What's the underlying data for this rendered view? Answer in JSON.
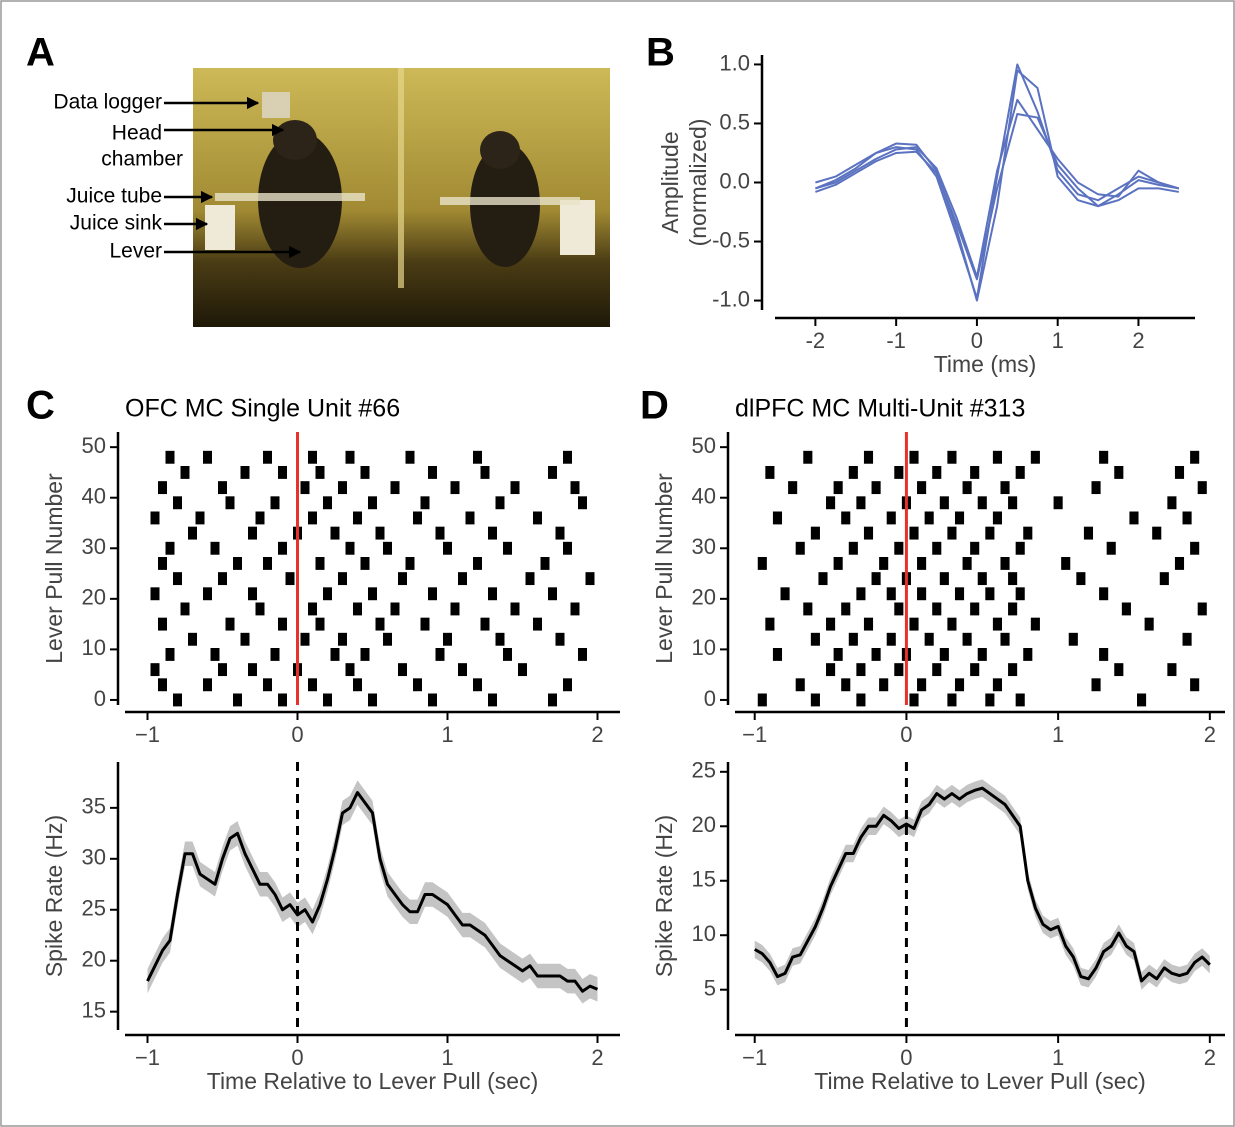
{
  "panel_letters": [
    "A",
    "B",
    "C",
    "D"
  ],
  "photo_labels": [
    "Data logger",
    "Head",
    "chamber",
    "Juice tube",
    "Juice sink",
    "Lever"
  ],
  "chart_data": [
    {
      "type": "line",
      "xlabel": "Time (ms)",
      "ylabel": [
        "Amplitude",
        "(normalized)"
      ],
      "x": [
        -2,
        -1.75,
        -1.5,
        -1.25,
        -1,
        -0.75,
        -0.5,
        -0.25,
        0,
        0.25,
        0.5,
        0.75,
        1,
        1.25,
        1.5,
        1.75,
        2,
        2.25,
        2.5
      ],
      "series": [
        {
          "color": "#5a72c0",
          "values": [
            -0.05,
            0.02,
            0.12,
            0.25,
            0.33,
            0.32,
            0.1,
            -0.4,
            -1.0,
            -0.2,
            0.95,
            0.8,
            0.05,
            -0.15,
            -0.2,
            -0.1,
            0.02,
            -0.02,
            -0.05
          ]
        },
        {
          "color": "#5a72c0",
          "values": [
            0.0,
            0.05,
            0.15,
            0.25,
            0.3,
            0.28,
            0.05,
            -0.45,
            -0.98,
            0.05,
            1.0,
            0.6,
            0.1,
            -0.1,
            -0.15,
            -0.05,
            0.05,
            0.0,
            -0.05
          ]
        },
        {
          "color": "#5a72c0",
          "values": [
            -0.08,
            -0.02,
            0.08,
            0.18,
            0.25,
            0.26,
            0.08,
            -0.35,
            -0.82,
            -0.05,
            0.58,
            0.55,
            0.15,
            -0.05,
            -0.2,
            -0.15,
            -0.05,
            -0.05,
            -0.08
          ]
        },
        {
          "color": "#5a72c0",
          "values": [
            -0.05,
            0.0,
            0.1,
            0.2,
            0.28,
            0.3,
            0.12,
            -0.3,
            -0.8,
            0.1,
            0.7,
            0.45,
            0.2,
            0.0,
            -0.1,
            -0.12,
            0.1,
            0.0,
            -0.05
          ]
        }
      ],
      "xlim": [
        -2.5,
        2.7
      ],
      "ylim": [
        -1.08,
        1.08
      ],
      "xticks": [
        -2,
        -1,
        0,
        1,
        2
      ],
      "yticks": [
        {
          "value": -1,
          "label": "-1.0"
        },
        {
          "value": -0.5,
          "label": "-0.5"
        },
        {
          "value": 0,
          "label": "0.0"
        },
        {
          "value": 0.5,
          "label": "0.5"
        },
        {
          "value": 1,
          "label": "1.0"
        }
      ]
    },
    {
      "type": "raster",
      "title": "OFC MC Single Unit #66",
      "ylabel": "Lever Pull Number",
      "color": "#000000",
      "vline": {
        "x": 0,
        "color": "#e8312a",
        "style": "solid"
      },
      "trials": [
        0,
        3,
        6,
        9,
        12,
        15,
        18,
        21,
        24,
        27,
        30,
        33,
        36,
        39,
        42,
        45,
        48
      ],
      "spike_times": [
        [
          -0.8,
          -0.4,
          -0.1,
          0.2,
          0.5,
          0.9,
          1.3,
          1.7
        ],
        [
          -0.9,
          -0.6,
          -0.2,
          0.1,
          0.4,
          0.8,
          1.2,
          1.8
        ],
        [
          -0.95,
          -0.5,
          -0.3,
          0.0,
          0.35,
          0.7,
          1.1,
          1.5
        ],
        [
          -0.85,
          -0.55,
          -0.15,
          0.25,
          0.45,
          0.95,
          1.4,
          1.9
        ],
        [
          -0.7,
          -0.35,
          0.05,
          0.3,
          0.6,
          1.0,
          1.35,
          1.75
        ],
        [
          -0.9,
          -0.45,
          -0.1,
          0.15,
          0.55,
          0.85,
          1.25,
          1.6
        ],
        [
          -0.75,
          -0.25,
          0.1,
          0.4,
          0.65,
          1.05,
          1.45,
          1.85
        ],
        [
          -0.95,
          -0.6,
          -0.3,
          0.2,
          0.5,
          0.9,
          1.3,
          1.7
        ],
        [
          -0.8,
          -0.5,
          -0.05,
          0.3,
          0.7,
          1.1,
          1.55,
          1.95
        ],
        [
          -0.9,
          -0.4,
          -0.2,
          0.15,
          0.45,
          0.75,
          1.2,
          1.65
        ],
        [
          -0.85,
          -0.55,
          -0.1,
          0.35,
          0.6,
          1.0,
          1.4,
          1.8
        ],
        [
          -0.7,
          -0.3,
          0.0,
          0.25,
          0.55,
          0.95,
          1.3,
          1.75
        ],
        [
          -0.95,
          -0.65,
          -0.25,
          0.1,
          0.4,
          0.8,
          1.15,
          1.6
        ],
        [
          -0.8,
          -0.45,
          -0.15,
          0.2,
          0.5,
          0.85,
          1.35,
          1.9
        ],
        [
          -0.9,
          -0.5,
          0.05,
          0.3,
          0.65,
          1.05,
          1.45,
          1.85
        ],
        [
          -0.75,
          -0.35,
          -0.1,
          0.15,
          0.45,
          0.9,
          1.25,
          1.7
        ],
        [
          -0.85,
          -0.6,
          -0.2,
          0.1,
          0.35,
          0.75,
          1.2,
          1.8
        ]
      ],
      "xlim": [
        -1.15,
        2.15
      ],
      "ylim": [
        -1,
        53
      ],
      "xticks": [
        {
          "value": -1,
          "label": "−1"
        },
        0,
        1,
        2
      ],
      "yticks": [
        0,
        10,
        20,
        30,
        40,
        50
      ]
    },
    {
      "type": "line",
      "xlabel": "Time Relative to Lever Pull (sec)",
      "ylabel": "Spike Rate (Hz)",
      "color": "#000000",
      "band_color": "#c4c4c4",
      "error_band": 1.2,
      "vline": {
        "x": 0,
        "color": "#000000",
        "style": "dashed"
      },
      "x": [
        -1,
        -0.95,
        -0.9,
        -0.85,
        -0.8,
        -0.75,
        -0.7,
        -0.65,
        -0.6,
        -0.55,
        -0.5,
        -0.45,
        -0.4,
        -0.35,
        -0.3,
        -0.25,
        -0.2,
        -0.15,
        -0.1,
        -0.05,
        0,
        0.05,
        0.1,
        0.15,
        0.2,
        0.25,
        0.3,
        0.35,
        0.4,
        0.45,
        0.5,
        0.55,
        0.6,
        0.65,
        0.7,
        0.75,
        0.8,
        0.85,
        0.9,
        0.95,
        1,
        1.05,
        1.1,
        1.15,
        1.2,
        1.25,
        1.3,
        1.35,
        1.4,
        1.45,
        1.5,
        1.55,
        1.6,
        1.65,
        1.7,
        1.75,
        1.8,
        1.85,
        1.9,
        1.95,
        2
      ],
      "values": [
        18,
        19.5,
        21,
        22,
        26.5,
        30.5,
        30.5,
        28.5,
        28,
        27.5,
        30,
        32,
        32.5,
        30.5,
        29,
        27.5,
        27.5,
        26.5,
        25,
        25.5,
        24.5,
        25,
        23.8,
        25.5,
        28,
        31,
        34.5,
        35,
        36.5,
        35.5,
        34.5,
        30,
        27.5,
        26.5,
        25.5,
        24.8,
        24.8,
        26.5,
        26.5,
        26,
        25.5,
        24.5,
        23.5,
        23.5,
        23,
        22.5,
        21.5,
        20.5,
        20,
        19.5,
        19,
        19.5,
        18.5,
        18.5,
        18.5,
        18.5,
        18,
        18,
        17,
        17.5,
        17.2
      ],
      "xlim": [
        -1.15,
        2.15
      ],
      "ylim": [
        13.2,
        39.5
      ],
      "xticks": [
        {
          "value": -1,
          "label": "−1"
        },
        0,
        1,
        2
      ],
      "yticks": [
        15,
        20,
        25,
        30,
        35
      ]
    },
    {
      "type": "raster",
      "title": "dlPFC MC Multi-Unit #313",
      "ylabel": "Lever Pull Number",
      "color": "#000000",
      "vline": {
        "x": 0,
        "color": "#e8312a",
        "style": "solid"
      },
      "trials": [
        0,
        3,
        6,
        9,
        12,
        15,
        18,
        21,
        24,
        27,
        30,
        33,
        36,
        39,
        42,
        45,
        48
      ],
      "spike_times": [
        [
          -0.95,
          -0.6,
          -0.3,
          0.05,
          0.3,
          0.55,
          0.75,
          1.55
        ],
        [
          -0.7,
          -0.4,
          -0.15,
          0.1,
          0.35,
          0.6,
          1.25,
          1.9
        ],
        [
          -0.5,
          -0.3,
          -0.05,
          0.2,
          0.45,
          0.7,
          1.4,
          1.75
        ],
        [
          -0.85,
          -0.45,
          -0.2,
          0.0,
          0.25,
          0.5,
          0.8,
          1.3
        ],
        [
          -0.6,
          -0.35,
          -0.1,
          0.15,
          0.4,
          0.65,
          1.1,
          1.85
        ],
        [
          -0.9,
          -0.5,
          -0.25,
          0.05,
          0.3,
          0.6,
          0.85,
          1.6
        ],
        [
          -0.65,
          -0.4,
          -0.05,
          0.2,
          0.45,
          0.7,
          1.45,
          1.95
        ],
        [
          -0.8,
          -0.3,
          -0.1,
          0.1,
          0.35,
          0.55,
          0.75,
          1.3
        ],
        [
          -0.55,
          -0.2,
          0.0,
          0.25,
          0.5,
          0.7,
          1.15,
          1.7
        ],
        [
          -0.95,
          -0.45,
          -0.15,
          0.1,
          0.4,
          0.65,
          1.05,
          1.8
        ],
        [
          -0.7,
          -0.35,
          -0.05,
          0.2,
          0.45,
          0.75,
          1.35,
          1.9
        ],
        [
          -0.6,
          -0.25,
          0.05,
          0.3,
          0.55,
          0.8,
          1.2,
          1.65
        ],
        [
          -0.85,
          -0.4,
          -0.1,
          0.15,
          0.35,
          0.6,
          1.5,
          1.85
        ],
        [
          -0.5,
          -0.3,
          0.0,
          0.25,
          0.5,
          0.7,
          1.0,
          1.75
        ],
        [
          -0.75,
          -0.45,
          -0.2,
          0.1,
          0.4,
          0.65,
          1.25,
          1.95
        ],
        [
          -0.9,
          -0.35,
          -0.05,
          0.2,
          0.45,
          0.75,
          1.4,
          1.8
        ],
        [
          -0.65,
          -0.25,
          0.05,
          0.3,
          0.6,
          0.85,
          1.3,
          1.9
        ]
      ],
      "xlim": [
        -1.13,
        2.1
      ],
      "ylim": [
        -1,
        53
      ],
      "xticks": [
        {
          "value": -1,
          "label": "−1"
        },
        0,
        1,
        2
      ],
      "yticks": [
        0,
        10,
        20,
        30,
        40,
        50
      ]
    },
    {
      "type": "line",
      "xlabel": "Time Relative to Lever Pull (sec)",
      "ylabel": "Spike Rate (Hz)",
      "color": "#000000",
      "band_color": "#c4c4c4",
      "error_band": 0.8,
      "vline": {
        "x": 0,
        "color": "#000000",
        "style": "dashed"
      },
      "x": [
        -1,
        -0.95,
        -0.9,
        -0.85,
        -0.8,
        -0.75,
        -0.7,
        -0.65,
        -0.6,
        -0.55,
        -0.5,
        -0.45,
        -0.4,
        -0.35,
        -0.3,
        -0.25,
        -0.2,
        -0.15,
        -0.1,
        -0.05,
        0,
        0.05,
        0.1,
        0.15,
        0.2,
        0.25,
        0.3,
        0.35,
        0.4,
        0.45,
        0.5,
        0.55,
        0.6,
        0.65,
        0.7,
        0.75,
        0.8,
        0.85,
        0.9,
        0.95,
        1,
        1.05,
        1.1,
        1.15,
        1.2,
        1.25,
        1.3,
        1.35,
        1.4,
        1.45,
        1.5,
        1.55,
        1.6,
        1.65,
        1.7,
        1.75,
        1.8,
        1.85,
        1.9,
        1.95,
        2
      ],
      "values": [
        8.7,
        8.3,
        7.5,
        6.2,
        6.5,
        8,
        8.2,
        9.5,
        10.8,
        12.5,
        14.5,
        16,
        17.5,
        17.5,
        19,
        20,
        20,
        21,
        20.5,
        19.8,
        20.2,
        19.8,
        21.5,
        22,
        23,
        22.5,
        23,
        22.5,
        23,
        23.3,
        23.5,
        23,
        22.5,
        22,
        21,
        20,
        15,
        12.5,
        11,
        10.5,
        10.8,
        9,
        8,
        6.2,
        6,
        7,
        8.5,
        9,
        10.2,
        9,
        8.5,
        5.8,
        6.5,
        6,
        7,
        6.5,
        6.3,
        6.5,
        7.5,
        8,
        7.3
      ],
      "xlim": [
        -1.13,
        2.1
      ],
      "ylim": [
        1.3,
        25.9
      ],
      "xticks": [
        {
          "value": -1,
          "label": "−1"
        },
        0,
        1,
        2
      ],
      "yticks": [
        5,
        10,
        15,
        20,
        25
      ]
    }
  ]
}
